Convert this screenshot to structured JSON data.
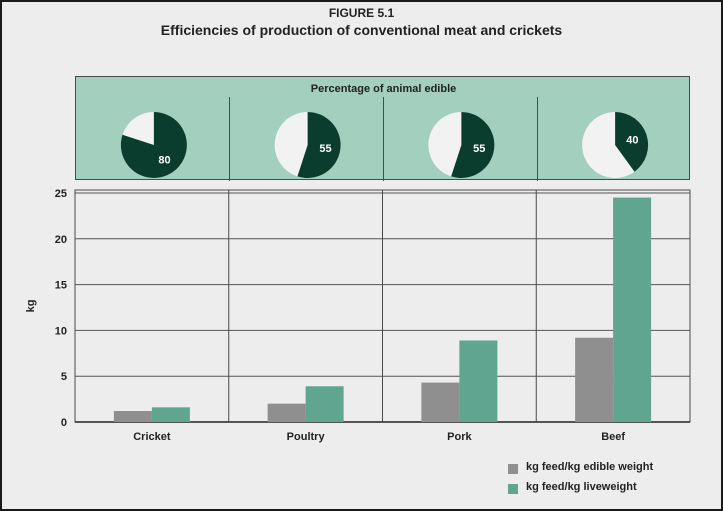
{
  "figure_label": "FIGURE 5.1",
  "title": "Efficiencies of production of conventional meat and crickets",
  "colors": {
    "edible": "#8f8f8f",
    "live": "#5fa58f",
    "pie_dark": "#0b3d2e",
    "pie_light": "#f2f2f2",
    "band": "#a3cfbe",
    "plot_bg": "#ededed"
  },
  "pie_panel": {
    "title": "Percentage of animal edible",
    "slices": [
      {
        "category": "Cricket",
        "value": 80
      },
      {
        "category": "Poultry",
        "value": 55
      },
      {
        "category": "Pork",
        "value": 55
      },
      {
        "category": "Beef",
        "value": 40
      }
    ]
  },
  "chart_data": [
    {
      "type": "pie",
      "title": "Percentage of animal edible",
      "categories": [
        "Cricket",
        "Poultry",
        "Pork",
        "Beef"
      ],
      "values": [
        80,
        55,
        55,
        40
      ]
    },
    {
      "type": "bar",
      "categories": [
        "Cricket",
        "Poultry",
        "Pork",
        "Beef"
      ],
      "series": [
        {
          "name": "kg feed/kg edible weight",
          "values": [
            1.2,
            2.0,
            4.3,
            9.2
          ]
        },
        {
          "name": "kg feed/kg liveweight",
          "values": [
            1.6,
            3.9,
            8.9,
            24.5
          ]
        }
      ],
      "xlabel": "",
      "ylabel": "kg",
      "ylim": [
        0,
        25
      ],
      "yticks": [
        0,
        5,
        10,
        15,
        20,
        25
      ],
      "grid": true,
      "legend": "bottom-right"
    }
  ]
}
